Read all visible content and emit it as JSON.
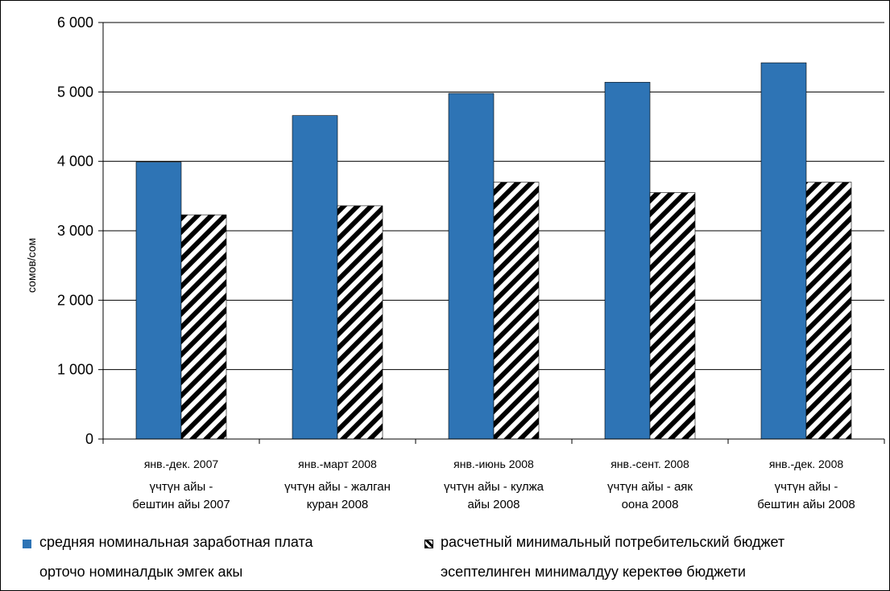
{
  "chart_data": {
    "type": "bar",
    "ylabel": "сомов/сом",
    "ylim": [
      0,
      6000
    ],
    "yticks": [
      {
        "value": 0,
        "label": "0"
      },
      {
        "value": 1000,
        "label": "1 000"
      },
      {
        "value": 2000,
        "label": "2 000"
      },
      {
        "value": 3000,
        "label": "3 000"
      },
      {
        "value": 4000,
        "label": "4 000"
      },
      {
        "value": 5000,
        "label": "5 000"
      },
      {
        "value": 6000,
        "label": "6 000"
      }
    ],
    "grid": true,
    "categories": [
      {
        "ru": "янв.-дек. 2007",
        "ky": [
          "үчтүн айы -",
          "бештин айы 2007"
        ]
      },
      {
        "ru": "янв.-март 2008",
        "ky": [
          "үчтүн айы - жалган",
          "куран 2008"
        ]
      },
      {
        "ru": "янв.-июнь 2008",
        "ky": [
          "үчтүн айы - кулжа",
          "айы 2008"
        ]
      },
      {
        "ru": "янв.-сент. 2008",
        "ky": [
          "үчтүн айы - аяк",
          "оона 2008"
        ]
      },
      {
        "ru": "янв.-дек. 2008",
        "ky": [
          "үчтүн айы -",
          "бештин айы 2008"
        ]
      }
    ],
    "series": [
      {
        "name": "средняя номинальная заработная плата",
        "name_ky": "орточо номиналдык эмгек акы",
        "color": "#2E74B5",
        "pattern": "solid",
        "values": [
          3990,
          4660,
          4980,
          5140,
          5420
        ]
      },
      {
        "name": "расчетный минимальный потребительский бюджет",
        "name_ky": "эсептелинген минималдуу керектөө бюджети",
        "color": "#000000",
        "pattern": "diagonal-stripes",
        "values": [
          3230,
          3360,
          3700,
          3550,
          3700
        ]
      }
    ],
    "legend_position": "bottom"
  }
}
